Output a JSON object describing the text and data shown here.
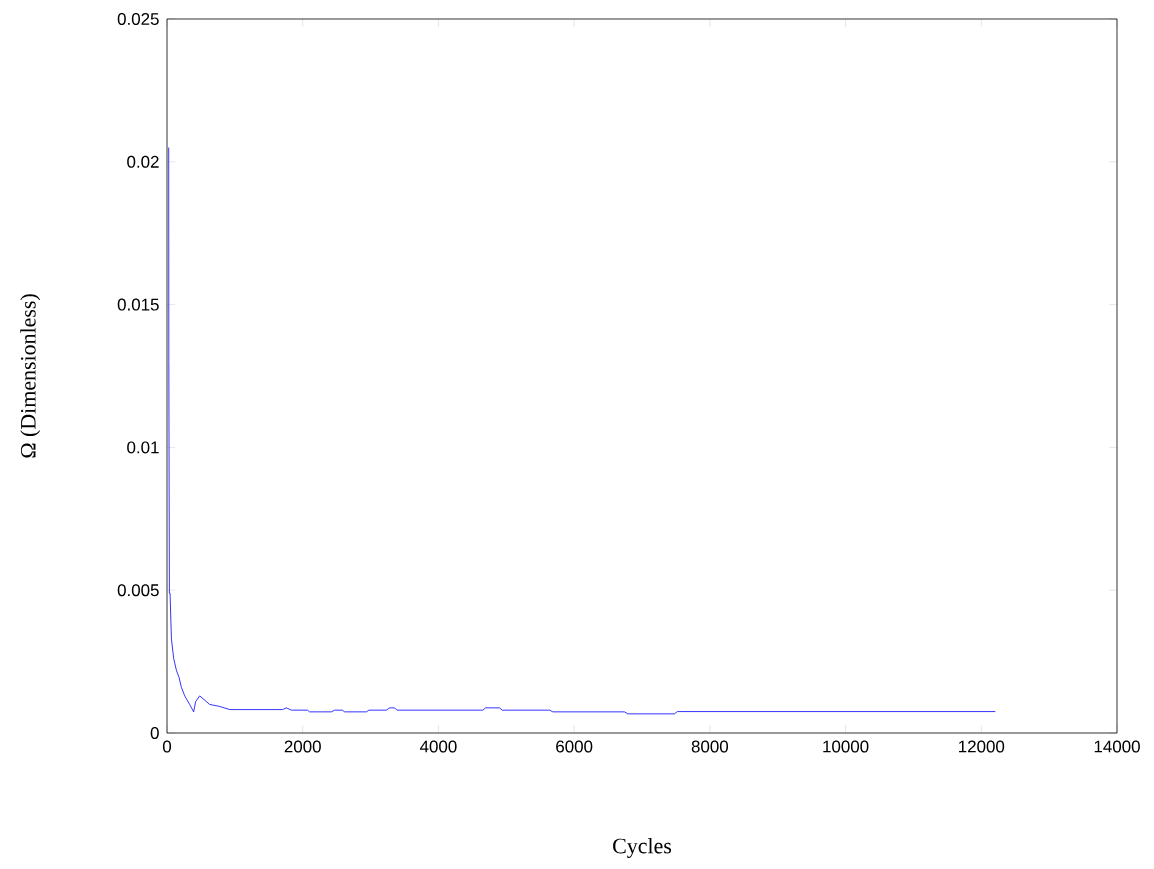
{
  "chart_data": {
    "type": "line",
    "xlabel": "Cycles",
    "ylabel": "Ω (Dimensionless)",
    "x": [
      25,
      27,
      35,
      45,
      65,
      99,
      138,
      177,
      212,
      261,
      334,
      393,
      422,
      482,
      629,
      776,
      924,
      1704,
      1759,
      1832,
      2072,
      2101,
      2422,
      2470,
      2584,
      2618,
      2937,
      2976,
      3232,
      3281,
      3355,
      3388,
      4655,
      4694,
      4900,
      4940,
      5640,
      5686,
      6742,
      6791,
      7478,
      7520,
      12207
    ],
    "series": [
      {
        "color": "#0000ff",
        "values": [
          0.0205,
          0.013,
          0.0049,
          0.0049,
          0.0033,
          0.0026,
          0.0022,
          0.00195,
          0.0016,
          0.0013,
          0.001,
          0.00074,
          0.0011,
          0.0013,
          0.001,
          0.00093,
          0.00082,
          0.00082,
          0.00088,
          0.0008,
          0.0008,
          0.00074,
          0.00074,
          0.0008,
          0.0008,
          0.00074,
          0.00074,
          0.0008,
          0.0008,
          0.00088,
          0.00088,
          0.0008,
          0.0008,
          0.00088,
          0.00088,
          0.0008,
          0.0008,
          0.00074,
          0.00074,
          0.00067,
          0.00067,
          0.00075,
          0.00075
        ]
      }
    ],
    "xlim": [
      0,
      14000
    ],
    "ylim": [
      0,
      0.025
    ],
    "xticks": [
      0,
      2000,
      4000,
      6000,
      8000,
      10000,
      12000,
      14000
    ],
    "yticks": [
      0,
      0.005,
      0.01,
      0.015,
      0.02,
      0.025
    ]
  }
}
